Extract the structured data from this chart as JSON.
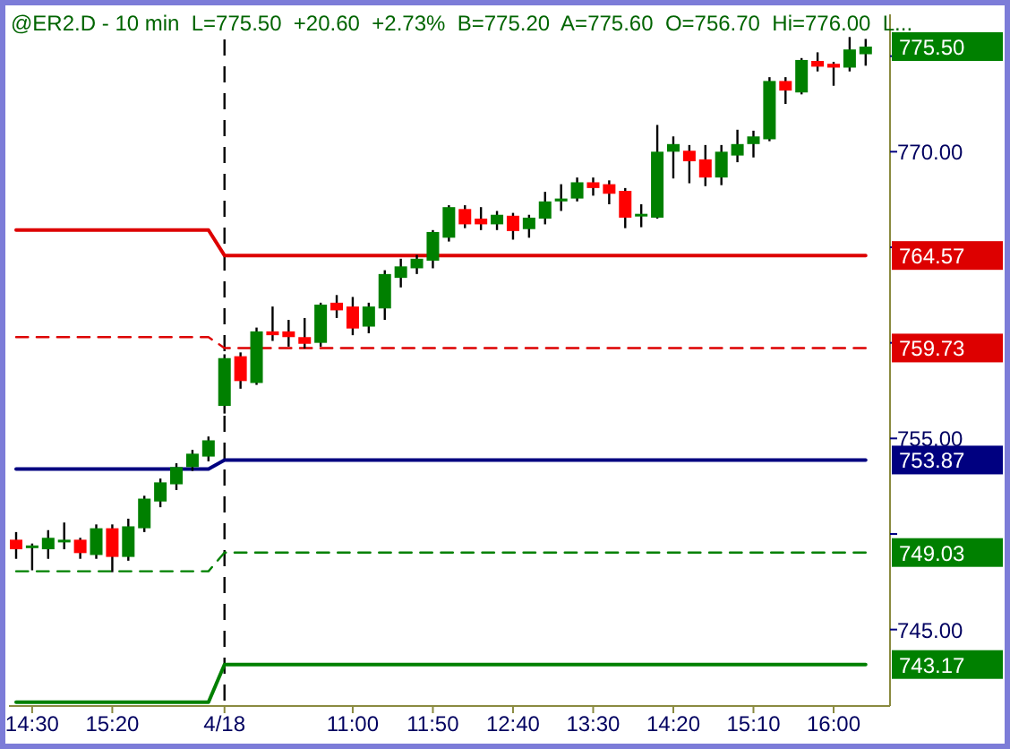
{
  "chart_data": {
    "type": "candlestick",
    "title": "@ER2.D - 10 min  L=775.50  +20.60  +2.73%  B=775.20  A=775.60  O=756.70  Hi=776.00  L...",
    "categories": [
      null,
      "14:30",
      null,
      null,
      null,
      null,
      "15:20",
      null,
      null,
      null,
      null,
      null,
      null,
      "4/18",
      null,
      null,
      null,
      null,
      null,
      null,
      null,
      "11:00",
      null,
      null,
      null,
      null,
      "11:50",
      null,
      null,
      null,
      null,
      "12:40",
      null,
      null,
      null,
      null,
      "13:30",
      null,
      null,
      null,
      null,
      "14:20",
      null,
      null,
      null,
      null,
      "15:10",
      null,
      null,
      null,
      null,
      "16:00",
      null,
      null
    ],
    "ylim": [
      741,
      777
    ],
    "yticks": [
      {
        "value": 745,
        "label": "745.00"
      },
      {
        "value": 750,
        "label": null
      },
      {
        "value": 755,
        "label": "755.00"
      },
      {
        "value": 760,
        "label": null
      },
      {
        "value": 765,
        "label": null
      },
      {
        "value": 770,
        "label": "770.00"
      },
      {
        "value": 775,
        "label": null
      }
    ],
    "ref_lines": [
      {
        "axis": "x",
        "value": "4/18",
        "color": "#000000",
        "line_style": "dashed"
      }
    ],
    "annotations": [
      "775.50"
    ],
    "series": [
      {
        "type": "line",
        "color": "#dd0000",
        "line_style": "solid",
        "values": [
          765.9,
          765.9,
          765.9,
          765.9,
          765.9,
          765.9,
          765.9,
          765.9,
          765.9,
          765.9,
          765.9,
          765.9,
          765.9,
          764.57,
          764.57,
          764.57,
          764.57,
          764.57,
          764.57,
          764.57,
          764.57,
          764.57,
          764.57,
          764.57,
          764.57,
          764.57,
          764.57,
          764.57,
          764.57,
          764.57,
          764.57,
          764.57,
          764.57,
          764.57,
          764.57,
          764.57,
          764.57,
          764.57,
          764.57,
          764.57,
          764.57,
          764.57,
          764.57,
          764.57,
          764.57,
          764.57,
          764.57,
          764.57,
          764.57,
          764.57,
          764.57,
          764.57,
          764.57,
          764.57
        ],
        "value_labels": [
          null,
          null,
          null,
          null,
          null,
          null,
          null,
          null,
          null,
          null,
          null,
          null,
          null,
          null,
          null,
          null,
          null,
          null,
          null,
          null,
          null,
          null,
          null,
          null,
          null,
          null,
          null,
          null,
          null,
          null,
          null,
          null,
          null,
          null,
          null,
          null,
          null,
          null,
          null,
          null,
          null,
          null,
          null,
          null,
          null,
          null,
          null,
          null,
          null,
          null,
          null,
          null,
          null,
          "764.57"
        ]
      },
      {
        "type": "line",
        "color": "#dd0000",
        "line_style": "dashed",
        "values": [
          760.3,
          760.3,
          760.3,
          760.3,
          760.3,
          760.3,
          760.3,
          760.3,
          760.3,
          760.3,
          760.3,
          760.3,
          760.3,
          759.73,
          759.73,
          759.73,
          759.73,
          759.73,
          759.73,
          759.73,
          759.73,
          759.73,
          759.73,
          759.73,
          759.73,
          759.73,
          759.73,
          759.73,
          759.73,
          759.73,
          759.73,
          759.73,
          759.73,
          759.73,
          759.73,
          759.73,
          759.73,
          759.73,
          759.73,
          759.73,
          759.73,
          759.73,
          759.73,
          759.73,
          759.73,
          759.73,
          759.73,
          759.73,
          759.73,
          759.73,
          759.73,
          759.73,
          759.73,
          759.73
        ],
        "value_labels": [
          null,
          null,
          null,
          null,
          null,
          null,
          null,
          null,
          null,
          null,
          null,
          null,
          null,
          null,
          null,
          null,
          null,
          null,
          null,
          null,
          null,
          null,
          null,
          null,
          null,
          null,
          null,
          null,
          null,
          null,
          null,
          null,
          null,
          null,
          null,
          null,
          null,
          null,
          null,
          null,
          null,
          null,
          null,
          null,
          null,
          null,
          null,
          null,
          null,
          null,
          null,
          null,
          null,
          "759.73"
        ]
      },
      {
        "type": "line",
        "color": "#000080",
        "line_style": "solid",
        "values": [
          753.4,
          753.4,
          753.4,
          753.4,
          753.4,
          753.4,
          753.4,
          753.4,
          753.4,
          753.4,
          753.4,
          753.4,
          753.4,
          753.87,
          753.87,
          753.87,
          753.87,
          753.87,
          753.87,
          753.87,
          753.87,
          753.87,
          753.87,
          753.87,
          753.87,
          753.87,
          753.87,
          753.87,
          753.87,
          753.87,
          753.87,
          753.87,
          753.87,
          753.87,
          753.87,
          753.87,
          753.87,
          753.87,
          753.87,
          753.87,
          753.87,
          753.87,
          753.87,
          753.87,
          753.87,
          753.87,
          753.87,
          753.87,
          753.87,
          753.87,
          753.87,
          753.87,
          753.87,
          753.87
        ],
        "value_labels": [
          null,
          null,
          null,
          null,
          null,
          null,
          null,
          null,
          null,
          null,
          null,
          null,
          null,
          null,
          null,
          null,
          null,
          null,
          null,
          null,
          null,
          null,
          null,
          null,
          null,
          null,
          null,
          null,
          null,
          null,
          null,
          null,
          null,
          null,
          null,
          null,
          null,
          null,
          null,
          null,
          null,
          null,
          null,
          null,
          null,
          null,
          null,
          null,
          null,
          null,
          null,
          null,
          null,
          "753.87"
        ]
      },
      {
        "type": "line",
        "color": "#008000",
        "line_style": "dashed",
        "values": [
          748.05,
          748.05,
          748.05,
          748.05,
          748.05,
          748.05,
          748.05,
          748.05,
          748.05,
          748.05,
          748.05,
          748.05,
          748.05,
          749.03,
          749.03,
          749.03,
          749.03,
          749.03,
          749.03,
          749.03,
          749.03,
          749.03,
          749.03,
          749.03,
          749.03,
          749.03,
          749.03,
          749.03,
          749.03,
          749.03,
          749.03,
          749.03,
          749.03,
          749.03,
          749.03,
          749.03,
          749.03,
          749.03,
          749.03,
          749.03,
          749.03,
          749.03,
          749.03,
          749.03,
          749.03,
          749.03,
          749.03,
          749.03,
          749.03,
          749.03,
          749.03,
          749.03,
          749.03,
          749.03
        ],
        "value_labels": [
          null,
          null,
          null,
          null,
          null,
          null,
          null,
          null,
          null,
          null,
          null,
          null,
          null,
          null,
          null,
          null,
          null,
          null,
          null,
          null,
          null,
          null,
          null,
          null,
          null,
          null,
          null,
          null,
          null,
          null,
          null,
          null,
          null,
          null,
          null,
          null,
          null,
          null,
          null,
          null,
          null,
          null,
          null,
          null,
          null,
          null,
          null,
          null,
          null,
          null,
          null,
          null,
          null,
          "749.03"
        ]
      },
      {
        "type": "line",
        "color": "#008000",
        "line_style": "solid",
        "values": [
          741.2,
          741.2,
          741.2,
          741.2,
          741.2,
          741.2,
          741.2,
          741.2,
          741.2,
          741.2,
          741.2,
          741.2,
          741.2,
          743.17,
          743.17,
          743.17,
          743.17,
          743.17,
          743.17,
          743.17,
          743.17,
          743.17,
          743.17,
          743.17,
          743.17,
          743.17,
          743.17,
          743.17,
          743.17,
          743.17,
          743.17,
          743.17,
          743.17,
          743.17,
          743.17,
          743.17,
          743.17,
          743.17,
          743.17,
          743.17,
          743.17,
          743.17,
          743.17,
          743.17,
          743.17,
          743.17,
          743.17,
          743.17,
          743.17,
          743.17,
          743.17,
          743.17,
          743.17,
          743.17
        ],
        "value_labels": [
          null,
          null,
          null,
          null,
          null,
          null,
          null,
          null,
          null,
          null,
          null,
          null,
          null,
          null,
          null,
          null,
          null,
          null,
          null,
          null,
          null,
          null,
          null,
          null,
          null,
          null,
          null,
          null,
          null,
          null,
          null,
          null,
          null,
          null,
          null,
          null,
          null,
          null,
          null,
          null,
          null,
          null,
          null,
          null,
          null,
          null,
          null,
          null,
          null,
          null,
          null,
          null,
          null,
          "743.17"
        ]
      },
      {
        "colors": [
          "#ff0000",
          "#008000",
          "#008000",
          "#008000",
          "#ff0000",
          "#008000",
          "#ff0000",
          "#008000",
          "#008000",
          "#008000",
          "#008000",
          "#008000",
          "#008000",
          "#008000",
          "#ff0000",
          "#008000",
          "#ff0000",
          "#ff0000",
          "#ff0000",
          "#008000",
          "#ff0000",
          "#ff0000",
          "#008000",
          "#008000",
          "#008000",
          "#008000",
          "#008000",
          "#008000",
          "#ff0000",
          "#ff0000",
          "#008000",
          "#ff0000",
          "#008000",
          "#008000",
          "#008000",
          "#008000",
          "#ff0000",
          "#ff0000",
          "#ff0000",
          "#008000",
          "#008000",
          "#008000",
          "#ff0000",
          "#ff0000",
          "#008000",
          "#008000",
          "#008000",
          "#008000",
          "#ff0000",
          "#008000",
          "#ff0000",
          "#ff0000",
          "#008000",
          "#008000"
        ],
        "ohlc": [
          [
            749.7,
            750.1,
            748.7,
            749.2
          ],
          [
            749.3,
            749.5,
            748.1,
            749.4
          ],
          [
            749.2,
            750.2,
            748.7,
            749.8
          ],
          [
            749.65,
            750.6,
            749.2,
            749.7
          ],
          [
            749.7,
            749.8,
            748.7,
            749.0
          ],
          [
            748.9,
            750.5,
            748.7,
            750.3
          ],
          [
            750.3,
            750.5,
            748.0,
            748.8
          ],
          [
            748.8,
            750.8,
            748.6,
            750.4
          ],
          [
            750.3,
            752.0,
            750.1,
            751.85
          ],
          [
            751.7,
            752.9,
            751.4,
            752.7
          ],
          [
            752.6,
            753.7,
            752.3,
            753.5
          ],
          [
            753.5,
            754.4,
            753.3,
            754.2
          ],
          [
            754.05,
            755.1,
            753.8,
            754.9
          ],
          [
            756.7,
            759.4,
            756.3,
            759.2
          ],
          [
            759.3,
            759.5,
            757.6,
            758.0
          ],
          [
            757.9,
            760.8,
            757.8,
            760.6
          ],
          [
            760.6,
            761.9,
            760.1,
            760.4
          ],
          [
            760.6,
            761.2,
            759.8,
            760.3
          ],
          [
            760.3,
            761.3,
            759.7,
            759.95
          ],
          [
            760.0,
            762.1,
            759.8,
            762.0
          ],
          [
            762.1,
            762.5,
            761.3,
            761.7
          ],
          [
            761.9,
            762.4,
            760.4,
            760.75
          ],
          [
            760.85,
            762.1,
            760.5,
            761.9
          ],
          [
            761.8,
            763.8,
            761.2,
            763.6
          ],
          [
            763.4,
            764.4,
            762.9,
            764.0
          ],
          [
            763.9,
            764.6,
            763.6,
            764.4
          ],
          [
            764.3,
            765.9,
            763.9,
            765.8
          ],
          [
            765.5,
            767.2,
            765.3,
            767.1
          ],
          [
            767.0,
            767.2,
            766.0,
            766.2
          ],
          [
            766.5,
            767.1,
            765.9,
            766.2
          ],
          [
            766.2,
            766.9,
            765.9,
            766.7
          ],
          [
            766.65,
            766.8,
            765.4,
            765.85
          ],
          [
            765.95,
            766.7,
            765.5,
            766.55
          ],
          [
            766.5,
            767.9,
            766.2,
            767.4
          ],
          [
            767.4,
            768.3,
            766.9,
            767.55
          ],
          [
            767.55,
            768.65,
            767.4,
            768.4
          ],
          [
            768.4,
            768.65,
            767.7,
            768.1
          ],
          [
            768.3,
            768.5,
            767.25,
            767.8
          ],
          [
            767.95,
            768.1,
            766.0,
            766.55
          ],
          [
            766.65,
            767.25,
            766.05,
            766.75
          ],
          [
            766.55,
            771.4,
            766.5,
            770.0
          ],
          [
            770.0,
            770.8,
            768.6,
            770.4
          ],
          [
            770.05,
            770.35,
            768.35,
            769.5
          ],
          [
            769.6,
            770.35,
            768.2,
            768.65
          ],
          [
            768.65,
            770.35,
            768.25,
            770.0
          ],
          [
            769.8,
            771.15,
            769.45,
            770.4
          ],
          [
            770.4,
            771.1,
            769.7,
            770.8
          ],
          [
            770.65,
            773.9,
            770.55,
            773.7
          ],
          [
            773.7,
            773.9,
            772.5,
            773.2
          ],
          [
            773.1,
            774.9,
            773.0,
            774.8
          ],
          [
            774.75,
            775.2,
            774.2,
            774.45
          ],
          [
            774.6,
            774.7,
            773.45,
            774.4
          ],
          [
            774.4,
            776.0,
            774.2,
            775.35
          ],
          [
            775.1,
            775.9,
            774.5,
            775.5
          ]
        ]
      }
    ]
  }
}
